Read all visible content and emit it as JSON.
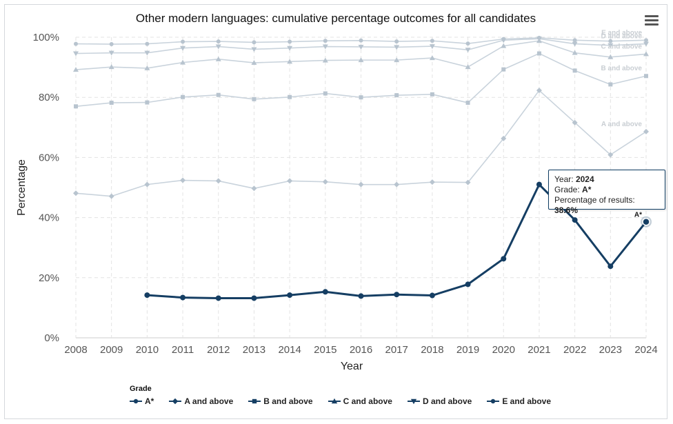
{
  "chart_data": {
    "type": "line",
    "title": "Other modern languages: cumulative percentage outcomes for all candidates",
    "xlabel": "Year",
    "ylabel": "Percentage",
    "ylim": [
      0,
      100
    ],
    "yticks": [
      "0%",
      "20%",
      "40%",
      "60%",
      "80%",
      "100%"
    ],
    "categories": [
      "2008",
      "2009",
      "2010",
      "2011",
      "2012",
      "2013",
      "2014",
      "2015",
      "2016",
      "2017",
      "2018",
      "2019",
      "2020",
      "2021",
      "2022",
      "2023",
      "2024"
    ],
    "legend_title": "Grade",
    "highlighted_series": "A*",
    "series": [
      {
        "name": "A*",
        "marker": "circle",
        "end_label": "A*",
        "values": [
          null,
          null,
          14.2,
          13.4,
          13.2,
          13.2,
          14.2,
          15.3,
          13.9,
          14.4,
          14.1,
          17.8,
          26.3,
          51.0,
          39.2,
          23.8,
          38.6
        ]
      },
      {
        "name": "A and above",
        "marker": "diamond",
        "end_label": "A and above",
        "values": [
          48.1,
          47.1,
          51.0,
          52.4,
          52.2,
          49.7,
          52.2,
          51.9,
          51.0,
          51.0,
          51.8,
          51.7,
          66.3,
          82.3,
          71.6,
          60.9,
          68.6
        ]
      },
      {
        "name": "B and above",
        "marker": "square",
        "end_label": "B and above",
        "values": [
          77.0,
          78.2,
          78.3,
          80.1,
          80.8,
          79.4,
          80.1,
          81.3,
          80.0,
          80.7,
          81.0,
          78.2,
          89.3,
          94.6,
          88.9,
          84.3,
          87.1
        ]
      },
      {
        "name": "C and above",
        "marker": "triangle",
        "end_label": "C and above",
        "values": [
          89.2,
          90.1,
          89.7,
          91.6,
          92.7,
          91.5,
          91.9,
          92.3,
          92.4,
          92.4,
          93.1,
          90.1,
          97.1,
          98.8,
          94.8,
          93.4,
          94.4
        ]
      },
      {
        "name": "D and above",
        "marker": "triangle-down",
        "end_label": "D and above",
        "values": [
          94.6,
          94.8,
          94.8,
          96.4,
          96.9,
          96.0,
          96.4,
          96.9,
          96.8,
          96.7,
          97.0,
          95.8,
          99.0,
          99.5,
          97.8,
          97.3,
          97.8
        ]
      },
      {
        "name": "E and above",
        "marker": "circle",
        "end_label": "E and above",
        "values": [
          97.8,
          97.7,
          97.8,
          98.5,
          98.6,
          98.3,
          98.5,
          98.8,
          98.9,
          98.6,
          98.8,
          97.9,
          99.4,
          99.8,
          99.0,
          98.7,
          99.0
        ]
      }
    ]
  },
  "tooltip": {
    "year_label": "Year:",
    "year_value": "2024",
    "grade_label": "Grade:",
    "grade_value": "A*",
    "pct_label": "Percentage of results:",
    "pct_value": "38.6%"
  },
  "colors": {
    "highlight": "#153e63",
    "faded": "#c9d3dc",
    "faded_marker": "#b8c4cf"
  }
}
